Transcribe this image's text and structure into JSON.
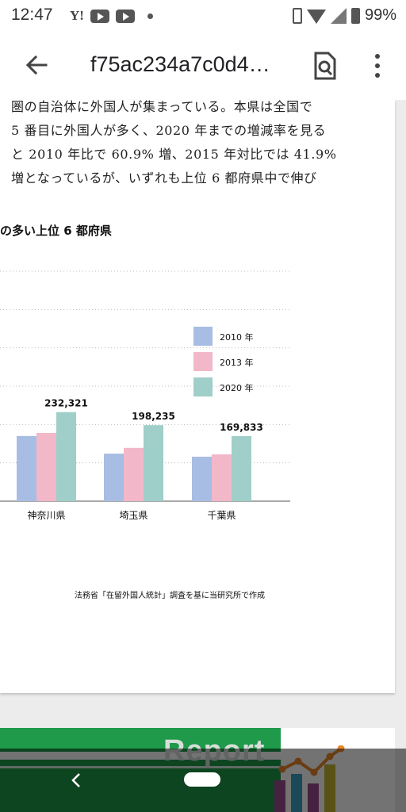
{
  "status_bar": {
    "time": "12:47",
    "left_icons": [
      "yahoo-icon",
      "youtube-icon",
      "youtube-icon",
      "dot-icon"
    ],
    "right_icons": [
      "vibrate-icon",
      "wifi-icon",
      "signal-icon",
      "battery-icon"
    ],
    "yahoo_label": "Y!",
    "battery": "99%"
  },
  "app_bar": {
    "title": "f75ac234a7c0d4…",
    "icons": [
      "back-arrow-icon",
      "document-search-icon",
      "more-vert-icon"
    ]
  },
  "article": {
    "lines": [
      "圏の自治体に外国人が集まっている。本県は全国で",
      "5 番目に外国人が多く、2020 年までの増減率を見る",
      "と 2010 年比で 60.9% 増、2015 年対比では 41.9%",
      "増となっているが、いずれも上位 6 都府県中で伸び"
    ],
    "chart_heading": "の多い上位 6 都府県",
    "chart_source": "法務省「在留外国人統計」調査を基に当研究所で作成"
  },
  "chart_data": {
    "type": "bar",
    "categories": [
      "神奈川県",
      "埼玉県",
      "千葉県"
    ],
    "series": [
      {
        "name": "2010 年",
        "color": "#a8bde3",
        "values": [
          170000,
          124000,
          116000
        ]
      },
      {
        "name": "2013 年",
        "color": "#f2b7c8",
        "values": [
          178000,
          139000,
          122000
        ]
      },
      {
        "name": "2020 年",
        "color": "#9fcfc8",
        "values": [
          232321,
          198235,
          169833
        ]
      }
    ],
    "data_labels": [
      "232,321",
      "198,235",
      "169,833"
    ],
    "ylim": [
      0,
      600000
    ],
    "grid": true,
    "legend": "right"
  },
  "report_banner": {
    "text": "Report",
    "bar_colors": [
      "#1f9a4a",
      "#1f9a4a",
      "#1f9a4a",
      "#1f9a4a",
      "#9b4d8f",
      "#3da2c7",
      "#9b4d8f",
      "#c5b533"
    ],
    "line_color": "#e9862a"
  },
  "nav_bar": {
    "icons": [
      "nav-back-icon",
      "home-pill-icon"
    ]
  }
}
